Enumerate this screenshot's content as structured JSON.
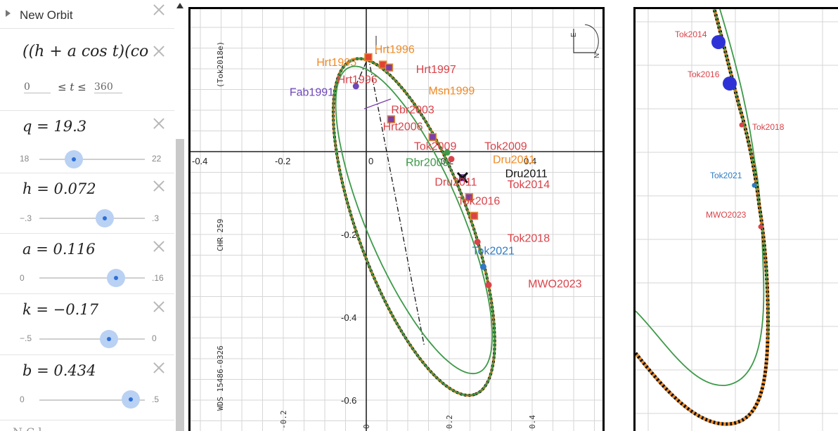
{
  "sidebar": {
    "title": "New Orbit",
    "formula": "((h + a cos t)(co",
    "t_min": "0",
    "t_relation": "≤ t ≤",
    "t_max": "360",
    "sliders": [
      {
        "label": "q = 19.3",
        "min": "18",
        "max": "22",
        "value": 19.3,
        "fraction": 0.325
      },
      {
        "label": "h = 0.072",
        "min": "−.3",
        "max": ".3",
        "value": 0.072,
        "fraction": 0.62
      },
      {
        "label": "a = 0.116",
        "min": "0",
        "max": ".16",
        "value": 0.116,
        "fraction": 0.725
      },
      {
        "label": "k = −0.17",
        "min": "−.5",
        "max": "0",
        "value": -0.17,
        "fraction": 0.66
      },
      {
        "label": "b = 0.434",
        "min": "0",
        "max": ".5",
        "value": 0.434,
        "fraction": 0.868
      }
    ],
    "next_item_partial": "N    C  l"
  },
  "main_plot": {
    "x_ticks": [
      "-0.4",
      "-0.2",
      "0",
      "0.2",
      "0.4"
    ],
    "y_ticks": [
      "-0.2",
      "-0.4",
      "-0.6"
    ],
    "bottom_ticks": [
      "-0.2",
      "0",
      "0.2",
      "0.4"
    ],
    "side_text_top": "(Tok2018e)",
    "side_text_mid": "CHR 259",
    "side_text_bottom": "WDS 15486-0326",
    "compass": {
      "north": "N",
      "east": "E"
    },
    "labels": [
      {
        "text": "Hrt1996",
        "color": "#f08a24",
        "x": 0.02,
        "y": 0.238
      },
      {
        "text": "Hrt1995",
        "color": "#f08a24",
        "x": -0.12,
        "y": 0.207
      },
      {
        "text": "Hrt1997",
        "color": "#d9434a",
        "x": 0.12,
        "y": 0.19
      },
      {
        "text": "Hrt1996",
        "color": "#d9434a",
        "x": -0.07,
        "y": 0.165
      },
      {
        "text": "Msn1999",
        "color": "#f08a24",
        "x": 0.15,
        "y": 0.138
      },
      {
        "text": "Fab1991",
        "color": "#6e47b8",
        "x": -0.185,
        "y": 0.135
      },
      {
        "text": "Rbr2003",
        "color": "#d9434a",
        "x": 0.06,
        "y": 0.092
      },
      {
        "text": "Hrt2006",
        "color": "#d9434a",
        "x": 0.04,
        "y": 0.052
      },
      {
        "text": "Tok2009",
        "color": "#d9434a",
        "x": 0.115,
        "y": 0.004
      },
      {
        "text": "Tok2009",
        "color": "#d9434a",
        "x": 0.285,
        "y": 0.004
      },
      {
        "text": "Rbr2009",
        "color": "#3c9a48",
        "x": 0.095,
        "y": -0.035
      },
      {
        "text": "Dru2011",
        "color": "#f08a24",
        "x": 0.305,
        "y": -0.028
      },
      {
        "text": "Dru2011",
        "color": "#111111",
        "x": 0.335,
        "y": -0.062
      },
      {
        "text": "Dru2011",
        "color": "#d9434a",
        "x": 0.165,
        "y": -0.082
      },
      {
        "text": "Tok2014",
        "color": "#d9434a",
        "x": 0.34,
        "y": -0.088
      },
      {
        "text": "Tok2016",
        "color": "#d9434a",
        "x": 0.22,
        "y": -0.128
      },
      {
        "text": "Tok2018",
        "color": "#d9434a",
        "x": 0.34,
        "y": -0.218
      },
      {
        "text": "Tok2021",
        "color": "#2e7bc4",
        "x": 0.255,
        "y": -0.248
      },
      {
        "text": "MWO2023",
        "color": "#d9434a",
        "x": 0.39,
        "y": -0.328
      }
    ],
    "points": [
      {
        "x": 0.005,
        "y": 0.228,
        "color": "#e2442f",
        "shape": "square"
      },
      {
        "x": 0.04,
        "y": 0.21,
        "color": "#e2442f",
        "shape": "square"
      },
      {
        "x": 0.055,
        "y": 0.203,
        "color": "#7b3fa8",
        "shape": "square"
      },
      {
        "x": -0.025,
        "y": 0.158,
        "color": "#6e47b8",
        "shape": "circle"
      },
      {
        "x": 0.06,
        "y": 0.078,
        "color": "#7b3fa8",
        "shape": "square"
      },
      {
        "x": 0.16,
        "y": 0.035,
        "color": "#7b3fa8",
        "shape": "square"
      },
      {
        "x": 0.195,
        "y": -0.002,
        "color": "#3c9a48",
        "shape": "circle"
      },
      {
        "x": 0.205,
        "y": -0.018,
        "color": "#d9434a",
        "shape": "circle"
      },
      {
        "x": 0.232,
        "y": -0.063,
        "color": "#111111",
        "shape": "cross"
      },
      {
        "x": 0.248,
        "y": -0.11,
        "color": "#7b3fa8",
        "shape": "square"
      },
      {
        "x": 0.26,
        "y": -0.155,
        "color": "#d9434a",
        "shape": "square"
      },
      {
        "x": 0.268,
        "y": -0.218,
        "color": "#d9434a",
        "shape": "circle"
      },
      {
        "x": 0.282,
        "y": -0.278,
        "color": "#2e7bc4",
        "shape": "circle"
      },
      {
        "x": 0.295,
        "y": -0.322,
        "color": "#d9434a",
        "shape": "circle"
      }
    ]
  },
  "zoom_plot": {
    "labels": [
      {
        "text": "Tok2014",
        "color": "#d9434a"
      },
      {
        "text": "Tok2016",
        "color": "#d9434a"
      },
      {
        "text": "Tok2018",
        "color": "#d9434a"
      },
      {
        "text": "Tok2021",
        "color": "#2e7bc4"
      },
      {
        "text": "MWO2023",
        "color": "#d9434a"
      }
    ]
  },
  "colors": {
    "orbit_green": "#3c9a48",
    "orbit_orange": "#f08a24",
    "slider_blue": "#2d6fd8"
  }
}
